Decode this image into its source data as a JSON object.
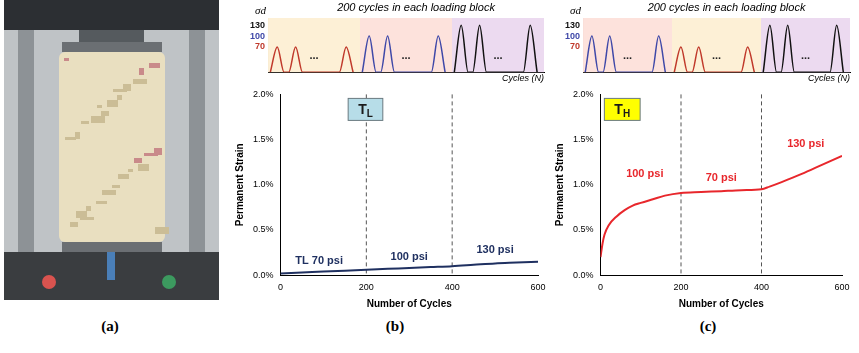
{
  "photo_panel": {
    "label": "(a)"
  },
  "chart_data": [
    {
      "type": "line",
      "title": "200 cycles in each loading block",
      "y_label": "σd",
      "x_label": "Cycles (N)",
      "xlim": [
        0,
        600
      ],
      "ylim": [
        0,
        150
      ],
      "yticks": [
        70,
        100,
        130
      ],
      "tick_labels": "y",
      "grid": false,
      "blocks": [
        {
          "range": [
            0,
            200
          ],
          "color": "#fdf0d6",
          "gap_label": "..."
        },
        {
          "range": [
            200,
            400
          ],
          "color": "#fde2dc",
          "gap_label": "..."
        },
        {
          "range": [
            400,
            600
          ],
          "color": "#ecdaf0",
          "gap_label": "..."
        }
      ],
      "series": [
        {
          "color": "#c0392b",
          "x": [
            20,
            60,
            170
          ],
          "values": [
            70,
            70,
            70
          ]
        },
        {
          "color": "#3f48a8",
          "x": [
            220,
            260,
            370
          ],
          "values": [
            100,
            100,
            100
          ]
        },
        {
          "color": "#111111",
          "x": [
            420,
            460,
            570
          ],
          "values": [
            130,
            130,
            130
          ]
        }
      ]
    },
    {
      "type": "line",
      "panel": "(b)",
      "title": "TL",
      "x_label": "Number of Cycles",
      "y_label": "Permanent Strain",
      "xlim": [
        0,
        600
      ],
      "xticks": [
        0,
        200,
        400,
        600
      ],
      "ylim": [
        0,
        2
      ],
      "yticks": [
        {
          "value": 0,
          "label": "0.0%"
        },
        {
          "value": 0.5,
          "label": "0.5%"
        },
        {
          "value": 1,
          "label": "1.0%"
        },
        {
          "value": 1.5,
          "label": "1.5%"
        },
        {
          "value": 2,
          "label": "2.0%"
        }
      ],
      "grid": false,
      "block_boundaries": [
        200,
        400
      ],
      "annotations": [
        {
          "text": "TL 70 psi",
          "x": 90,
          "y": 0.16
        },
        {
          "text": "100 psi",
          "x": 300,
          "y": 0.2
        },
        {
          "text": "130 psi",
          "x": 500,
          "y": 0.28
        }
      ],
      "x": [
        0,
        50,
        100,
        150,
        200,
        250,
        300,
        350,
        400,
        450,
        500,
        550,
        600
      ],
      "series": [
        {
          "color": "#1f3060",
          "values": [
            0.02,
            0.03,
            0.04,
            0.05,
            0.06,
            0.07,
            0.08,
            0.09,
            0.1,
            0.115,
            0.13,
            0.14,
            0.15
          ]
        }
      ]
    },
    {
      "type": "line",
      "title": "200 cycles in each loading block",
      "y_label": "σd",
      "x_label": "Cycles (N)",
      "xlim": [
        0,
        600
      ],
      "ylim": [
        0,
        150
      ],
      "yticks": [
        70,
        100,
        130
      ],
      "tick_labels": "y",
      "grid": false,
      "blocks": [
        {
          "range": [
            0,
            200
          ],
          "color": "#fde2dc",
          "gap_label": "..."
        },
        {
          "range": [
            200,
            400
          ],
          "color": "#fdf0d6",
          "gap_label": "..."
        },
        {
          "range": [
            400,
            600
          ],
          "color": "#ecdaf0",
          "gap_label": "..."
        }
      ],
      "series": [
        {
          "color": "#3f48a8",
          "x": [
            20,
            60,
            170
          ],
          "values": [
            100,
            100,
            100
          ]
        },
        {
          "color": "#c0392b",
          "x": [
            220,
            260,
            370
          ],
          "values": [
            70,
            70,
            70
          ]
        },
        {
          "color": "#111111",
          "x": [
            420,
            460,
            570
          ],
          "values": [
            130,
            130,
            130
          ]
        }
      ]
    },
    {
      "type": "line",
      "panel": "(c)",
      "title": "TH",
      "x_label": "Number of Cycles",
      "y_label": "Permanent Strain",
      "xlim": [
        0,
        600
      ],
      "xticks": [
        0,
        200,
        400,
        600
      ],
      "ylim": [
        0,
        2
      ],
      "yticks": [
        {
          "value": 0,
          "label": "0.0%"
        },
        {
          "value": 0.5,
          "label": "0.5%"
        },
        {
          "value": 1,
          "label": "1.0%"
        },
        {
          "value": 1.5,
          "label": "1.5%"
        },
        {
          "value": 2,
          "label": "2.0%"
        }
      ],
      "grid": false,
      "block_boundaries": [
        200,
        400
      ],
      "annotations": [
        {
          "text": "100 psi",
          "x": 110,
          "y": 1.12
        },
        {
          "text": "70 psi",
          "x": 300,
          "y": 1.08
        },
        {
          "text": "130 psi",
          "x": 510,
          "y": 1.45
        }
      ],
      "x": [
        0,
        5,
        10,
        20,
        40,
        60,
        80,
        100,
        130,
        160,
        200,
        250,
        300,
        350,
        400,
        420,
        450,
        500,
        550,
        600
      ],
      "series": [
        {
          "color": "#e8272c",
          "values": [
            0.2,
            0.35,
            0.45,
            0.55,
            0.65,
            0.72,
            0.77,
            0.8,
            0.84,
            0.88,
            0.91,
            0.92,
            0.93,
            0.94,
            0.95,
            0.98,
            1.03,
            1.12,
            1.22,
            1.32
          ]
        }
      ]
    }
  ]
}
